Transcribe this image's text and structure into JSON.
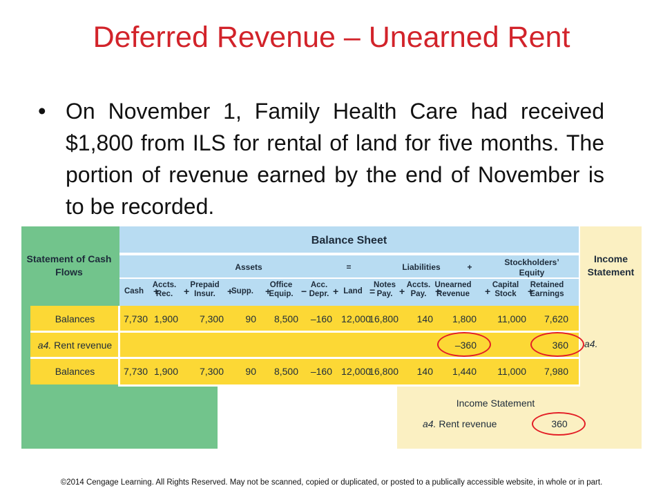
{
  "title": "Deferred Revenue – Unearned Rent",
  "bullet": "On November 1, Family Health Care had received $1,800 from ILS for rental of land for five months. The portion of revenue earned by the end of November is to be recorded.",
  "diagram": {
    "cash_flows_label": "Statement of Cash Flows",
    "balance_sheet_title": "Balance Sheet",
    "income_statement_label": "Income Statement",
    "equation": {
      "assets": "Assets",
      "equals": "=",
      "liabilities": "Liabilities",
      "plus": "+",
      "equity": "Stockholders’ Equity"
    },
    "columns": [
      "Cash",
      "Accts. Rec.",
      "Prepaid Insur.",
      "Supp.",
      "Office Equip.",
      "Acc. Depr.",
      "Land",
      "Notes Pay.",
      "Accts. Pay.",
      "Unearned Revenue",
      "Capital Stock",
      "Retained Earnings"
    ],
    "operators": [
      "+",
      "+",
      "+",
      "+",
      "−",
      "+",
      "=",
      "+",
      "+",
      "+",
      "+"
    ],
    "rows": [
      {
        "label": "Balances",
        "values": [
          "7,730",
          "1,900",
          "7,300",
          "90",
          "8,500",
          "–160",
          "12,000",
          "16,800",
          "140",
          "1,800",
          "11,000",
          "7,620"
        ]
      },
      {
        "label_prefix": "a4.",
        "label": "Rent revenue",
        "values": [
          "",
          "",
          "",
          "",
          "",
          "",
          "",
          "",
          "",
          "–360",
          "",
          "360"
        ],
        "side": "a4."
      },
      {
        "label": "Balances",
        "values": [
          "7,730",
          "1,900",
          "7,300",
          "90",
          "8,500",
          "–160",
          "12,000",
          "16,800",
          "140",
          "1,440",
          "11,000",
          "7,980"
        ]
      }
    ],
    "income_box": {
      "title": "Income Statement",
      "label_prefix": "a4.",
      "label": "Rent revenue",
      "value": "360"
    }
  },
  "footer": "©2014 Cengage Learning. All Rights Reserved. May not be scanned, copied or duplicated, or posted to a publically accessible website, in whole or in part.",
  "colors": {
    "title": "#d2232a",
    "cash_flows": "#72c48c",
    "balance_sheet": "#b8dcf2",
    "transaction_rows": "#fcd835",
    "income_statement": "#fbf0c2",
    "highlight_circle": "#e31e26"
  }
}
